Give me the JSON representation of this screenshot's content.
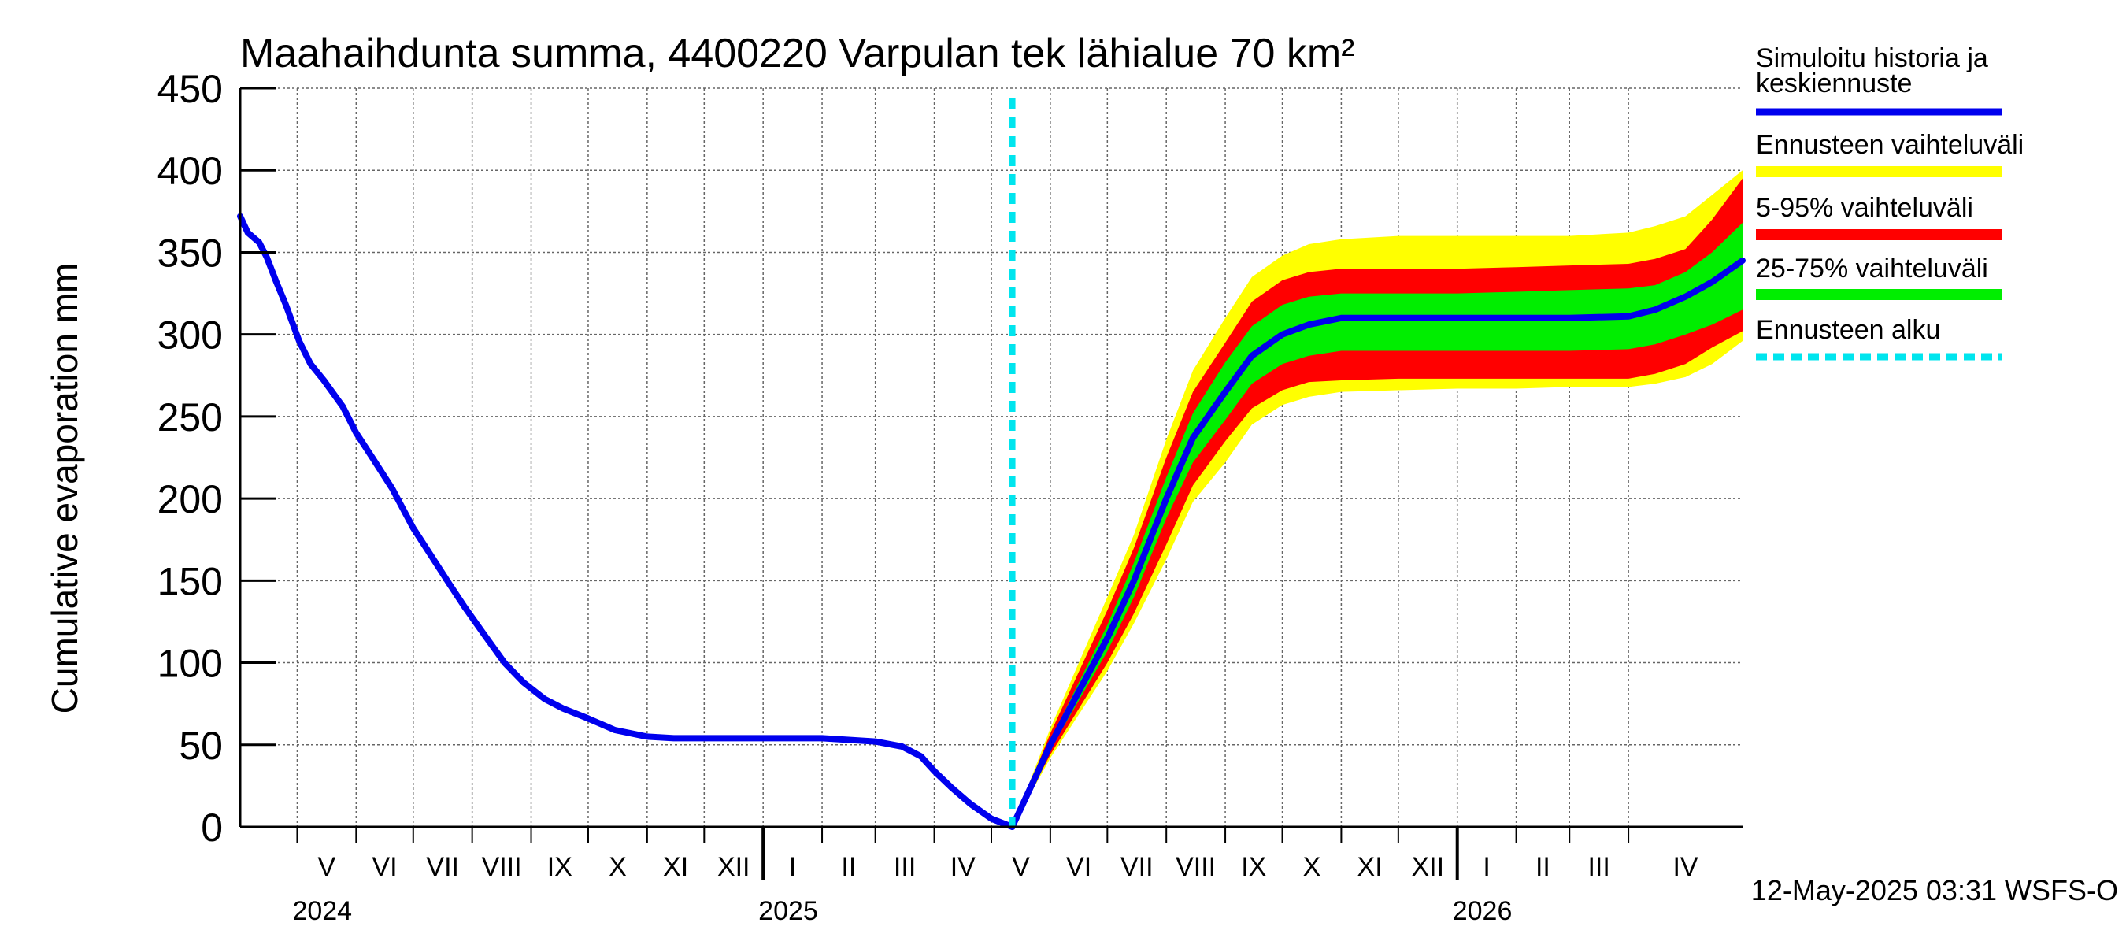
{
  "chart_data": {
    "type": "area",
    "title": "Maahaihdunta summa, 4400220 Varpulan tek lähialue 70 km²",
    "ylabel": "Cumulative evaporation   mm",
    "ylim": [
      0,
      450
    ],
    "yticks": [
      0,
      50,
      100,
      150,
      200,
      250,
      300,
      350,
      400,
      450
    ],
    "grid": true,
    "legend_placement": "right",
    "x_start": "2024-04-01",
    "x_end": "2026-05-31",
    "months": [
      {
        "label": "V",
        "start": "2024-05-01"
      },
      {
        "label": "VI",
        "start": "2024-06-01"
      },
      {
        "label": "VII",
        "start": "2024-07-01"
      },
      {
        "label": "VIII",
        "start": "2024-08-01"
      },
      {
        "label": "IX",
        "start": "2024-09-01"
      },
      {
        "label": "X",
        "start": "2024-10-01"
      },
      {
        "label": "XI",
        "start": "2024-11-01"
      },
      {
        "label": "XII",
        "start": "2024-12-01"
      },
      {
        "label": "I",
        "start": "2025-01-01"
      },
      {
        "label": "II",
        "start": "2025-02-01"
      },
      {
        "label": "III",
        "start": "2025-03-01"
      },
      {
        "label": "IV",
        "start": "2025-04-01"
      },
      {
        "label": "V",
        "start": "2025-05-01"
      },
      {
        "label": "VI",
        "start": "2025-06-01"
      },
      {
        "label": "VII",
        "start": "2025-07-01"
      },
      {
        "label": "VIII",
        "start": "2025-08-01"
      },
      {
        "label": "IX",
        "start": "2025-09-01"
      },
      {
        "label": "X",
        "start": "2025-10-01"
      },
      {
        "label": "XI",
        "start": "2025-11-01"
      },
      {
        "label": "XII",
        "start": "2025-12-01"
      },
      {
        "label": "I",
        "start": "2026-01-01"
      },
      {
        "label": "II",
        "start": "2026-02-01"
      },
      {
        "label": "III",
        "start": "2026-03-01"
      },
      {
        "label": "IV",
        "start": "2026-04-01"
      }
    ],
    "years": [
      {
        "label": "2024",
        "start": "2024-05-01"
      },
      {
        "label": "2025",
        "start": "2025-01-01"
      },
      {
        "label": "2026",
        "start": "2026-01-01"
      }
    ],
    "forecast_start": "2025-05-12",
    "history": {
      "name": "Simuloitu historia ja keskiennuste",
      "color": "#0000ee",
      "x": [
        "2024-04-01",
        "2024-04-05",
        "2024-04-11",
        "2024-04-15",
        "2024-04-20",
        "2024-04-25",
        "2024-05-02",
        "2024-05-08",
        "2024-05-15",
        "2024-05-25",
        "2024-06-01",
        "2024-06-10",
        "2024-06-20",
        "2024-07-01",
        "2024-07-10",
        "2024-07-20",
        "2024-07-28",
        "2024-08-08",
        "2024-08-18",
        "2024-08-28",
        "2024-09-08",
        "2024-09-18",
        "2024-10-01",
        "2024-10-15",
        "2024-11-01",
        "2024-11-15",
        "2024-12-01",
        "2025-01-01",
        "2025-02-01",
        "2025-03-01",
        "2025-03-15",
        "2025-03-25",
        "2025-04-01",
        "2025-04-10",
        "2025-04-20",
        "2025-05-01",
        "2025-05-12"
      ],
      "y": [
        372,
        362,
        356,
        347,
        332,
        318,
        296,
        282,
        272,
        256,
        240,
        224,
        206,
        182,
        166,
        148,
        134,
        116,
        100,
        88,
        78,
        72,
        66,
        59,
        55,
        54,
        54,
        54,
        54,
        52,
        49,
        43,
        34,
        24,
        14,
        5,
        0
      ]
    },
    "forecast": {
      "x": [
        "2025-05-12",
        "2025-06-01",
        "2025-07-01",
        "2025-07-15",
        "2025-08-01",
        "2025-08-15",
        "2025-09-01",
        "2025-09-15",
        "2025-10-01",
        "2025-10-15",
        "2025-11-01",
        "2025-12-01",
        "2026-01-01",
        "2026-02-01",
        "2026-03-01",
        "2026-04-01",
        "2026-04-15",
        "2026-05-01",
        "2026-05-15",
        "2026-05-31"
      ],
      "mean": [
        0,
        50,
        115,
        150,
        200,
        237,
        265,
        287,
        300,
        306,
        310,
        310,
        310,
        310,
        310,
        311,
        315,
        323,
        332,
        345
      ],
      "p25": [
        0,
        47,
        107,
        140,
        188,
        222,
        248,
        270,
        282,
        287,
        290,
        290,
        290,
        290,
        290,
        291,
        294,
        300,
        306,
        315
      ],
      "p75": [
        0,
        53,
        123,
        161,
        213,
        252,
        283,
        305,
        318,
        323,
        325,
        325,
        325,
        326,
        327,
        328,
        330,
        338,
        350,
        368
      ],
      "p5": [
        0,
        44,
        100,
        130,
        172,
        208,
        235,
        255,
        266,
        271,
        272,
        273,
        273,
        273,
        273,
        273,
        276,
        282,
        292,
        302
      ],
      "p95": [
        0,
        57,
        132,
        170,
        225,
        265,
        295,
        320,
        333,
        338,
        340,
        340,
        340,
        341,
        342,
        343,
        346,
        352,
        370,
        395
      ],
      "min": [
        0,
        42,
        95,
        124,
        163,
        198,
        222,
        245,
        257,
        262,
        265,
        266,
        267,
        267,
        268,
        268,
        270,
        274,
        282,
        296
      ],
      "max": [
        0,
        60,
        140,
        178,
        236,
        278,
        310,
        335,
        348,
        355,
        358,
        360,
        360,
        360,
        360,
        362,
        366,
        372,
        385,
        400
      ]
    },
    "legend": [
      {
        "label": "Simuloitu historia ja keskiennuste",
        "color": "#0000ee",
        "style": "line"
      },
      {
        "label": "Ennusteen vaihteluväli",
        "color": "#ffff00",
        "style": "band"
      },
      {
        "label": "5-95% vaihteluväli",
        "color": "#ff0000",
        "style": "band"
      },
      {
        "label": "25-75% vaihteluväli",
        "color": "#00ee00",
        "style": "band"
      },
      {
        "label": "Ennusteen alku",
        "color": "#00e5ee",
        "style": "dashed"
      }
    ],
    "footer": "12-May-2025 03:31 WSFS-O"
  }
}
